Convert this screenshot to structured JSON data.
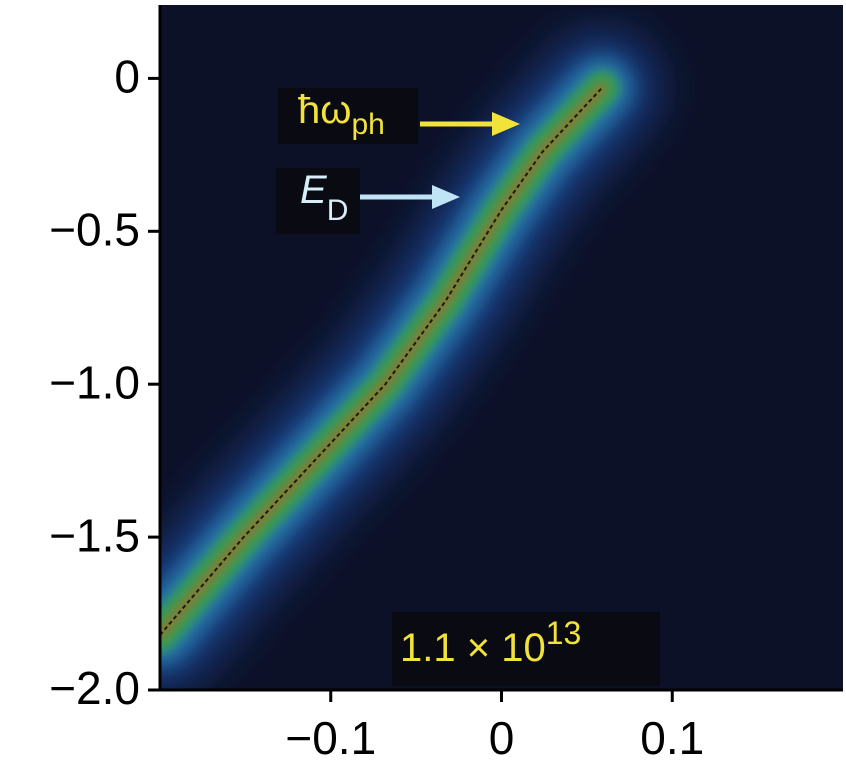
{
  "chart_data": {
    "type": "dispersion",
    "x": [
      -0.2,
      -0.151,
      -0.068,
      -0.033,
      0,
      0.024,
      0.059
    ],
    "values": [
      -1.82,
      -1.5,
      -1.0,
      -0.73,
      -0.43,
      -0.24,
      -0.03
    ],
    "xlim": [
      -0.2,
      0.2
    ],
    "ylim": [
      -2.0,
      0.24
    ],
    "xticks": [
      {
        "value": -0.1,
        "label": "−0.1"
      },
      0,
      0.1
    ],
    "yticks": [
      0,
      {
        "value": -0.5,
        "label": "−0.5"
      },
      {
        "value": -1.0,
        "label": "−1.0"
      },
      {
        "value": -1.5,
        "label": "−1.5"
      },
      {
        "value": -2.0,
        "label": "−2.0"
      }
    ],
    "annotations": [
      {
        "text": "ħω",
        "subscript": "ph",
        "color": "#f2e33a"
      },
      {
        "text": "E",
        "subscript": "D",
        "color": "#d8eef8"
      },
      {
        "text": "1.1 × 10",
        "superscript": "13",
        "color": "#f2e33a"
      }
    ]
  }
}
